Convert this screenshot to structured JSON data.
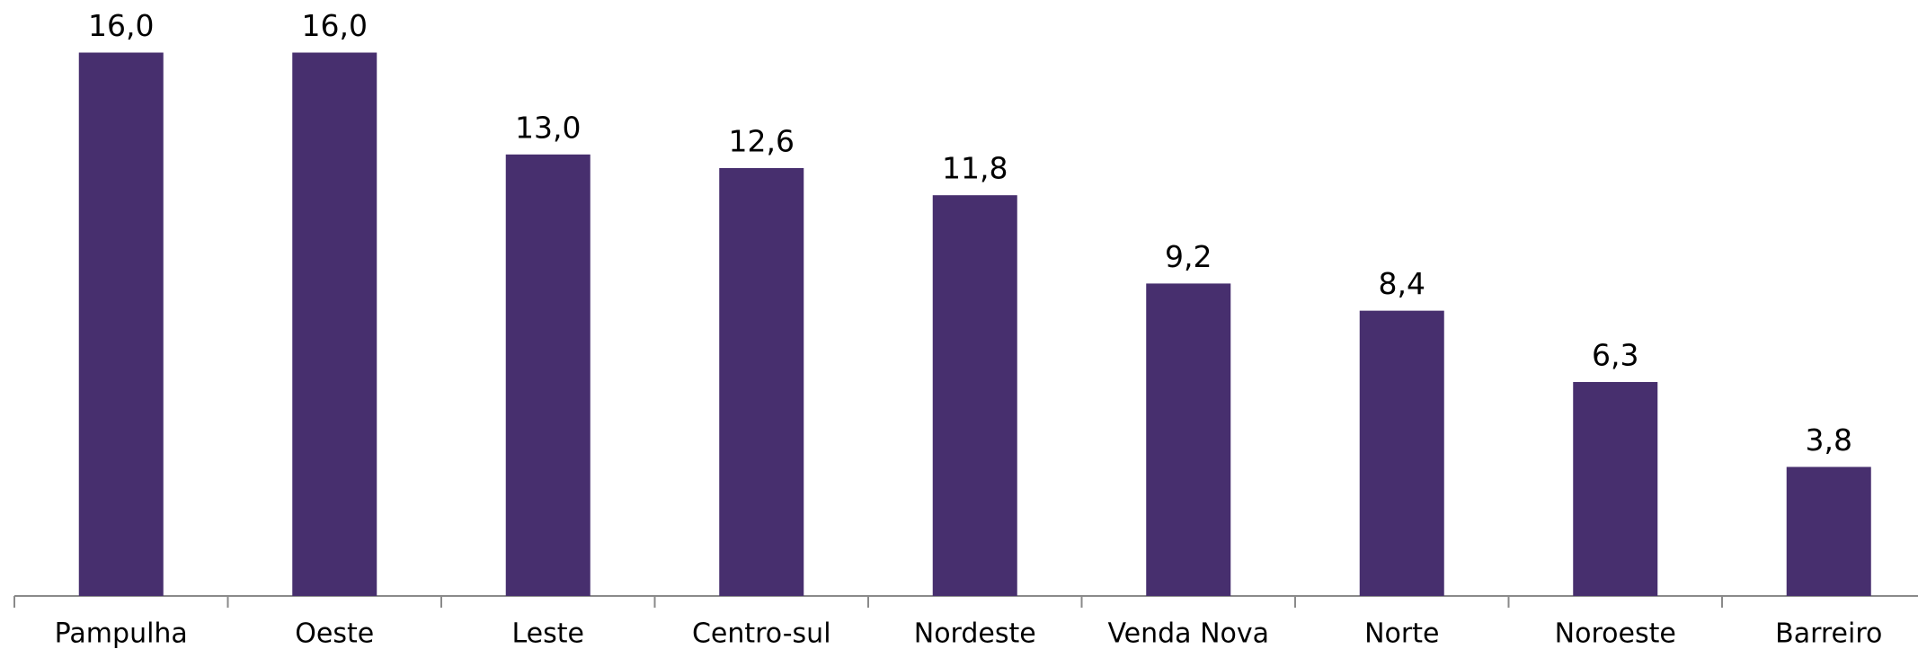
{
  "chart_data": {
    "type": "bar",
    "categories": [
      "Pampulha",
      "Oeste",
      "Leste",
      "Centro-sul",
      "Nordeste",
      "Venda Nova",
      "Norte",
      "Noroeste",
      "Barreiro"
    ],
    "values": [
      16.0,
      16.0,
      13.0,
      12.6,
      11.8,
      9.2,
      8.4,
      6.3,
      3.8
    ],
    "value_labels": [
      "16,0",
      "16,0",
      "13,0",
      "12,6",
      "11,8",
      "9,2",
      "8,4",
      "6,3",
      "3,8"
    ],
    "color": "#472f6e",
    "ylim": [
      0,
      16
    ]
  }
}
